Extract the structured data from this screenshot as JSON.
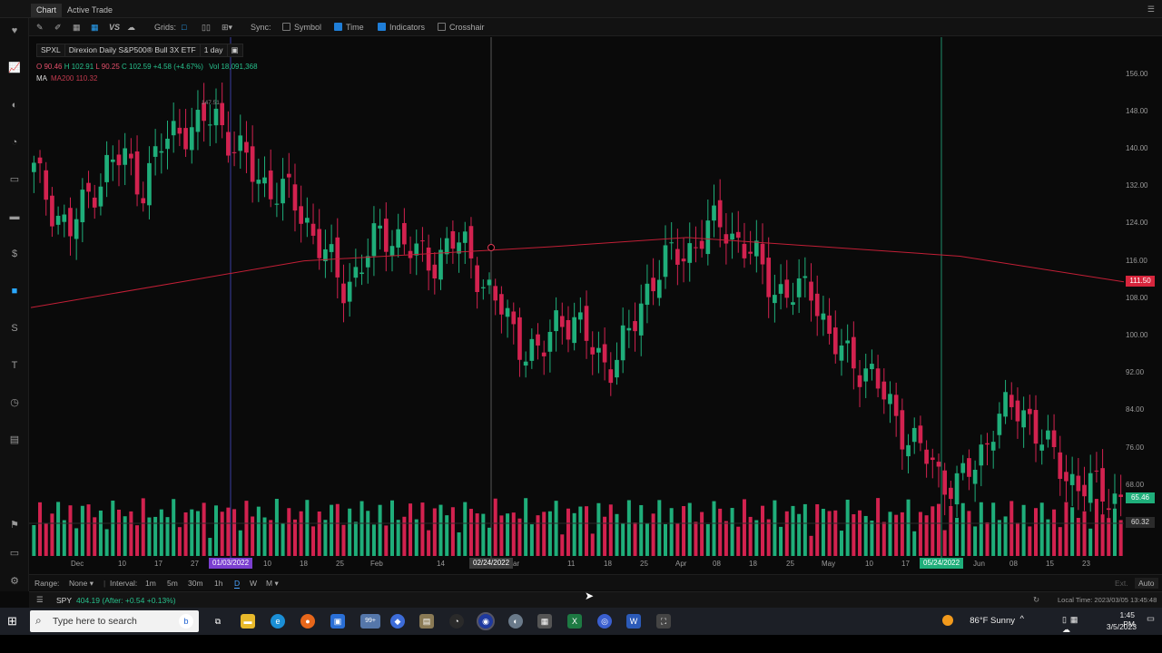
{
  "tabs": [
    "Chart",
    "Active Trade"
  ],
  "toolbar": {
    "grids_label": "Grids:",
    "sync_label": "Sync:",
    "vs_label": "VS",
    "sync_options": [
      {
        "label": "Symbol",
        "checked": false
      },
      {
        "label": "Time",
        "checked": true
      },
      {
        "label": "Indicators",
        "checked": true
      },
      {
        "label": "Crosshair",
        "checked": false
      }
    ]
  },
  "header": {
    "symbol": "SPXL",
    "description": "Direxion Daily S&P500® Bull 3X ETF",
    "interval": "1 day",
    "ohlc": {
      "o": "O 90.46",
      "h": "H 102.91",
      "l": "L 90.25",
      "c": "C 102.59",
      "chg": "+4.58 (+4.67%)",
      "vol": "Vol 18,091,368"
    },
    "ma_label": "MA",
    "ma_value": "MA200 110.32",
    "high_marker": "147.51"
  },
  "price_axis": {
    "labels": [
      "156.00",
      "148.00",
      "140.00",
      "132.00",
      "124.00",
      "116.00",
      "108.00",
      "100.00",
      "92.00",
      "84.00",
      "76.00",
      "68.00"
    ],
    "ma_tag": "111.50",
    "last_tag": "65.46",
    "cross_tag": "60.32",
    "colors": {
      "ma": "#d7263d",
      "last": "#1fae7a",
      "cross": "#2b2b2b"
    }
  },
  "date_axis": {
    "labels": [
      "Dec",
      "10",
      "17",
      "27",
      "10",
      "18",
      "25",
      "Feb",
      "14",
      "ar",
      "11",
      "18",
      "25",
      "Apr",
      "08",
      "18",
      "25",
      "May",
      "10",
      "17",
      "Jun",
      "08",
      "15",
      "23"
    ],
    "tags": [
      {
        "text": "01/03/2022",
        "color": "#7b3fd0"
      },
      {
        "text": "02/24/2022",
        "color": "#3a3a3a"
      },
      {
        "text": "05/24/2022",
        "color": "#1fae7a"
      }
    ]
  },
  "range_bar": {
    "range_label": "Range:",
    "range_value": "None",
    "interval_label": "Interval:",
    "intervals": [
      "1m",
      "5m",
      "30m",
      "1h",
      "D",
      "W",
      "M"
    ],
    "selected": "D",
    "ext_label": "Ext.",
    "auto_label": "Auto"
  },
  "status": {
    "ticker": "SPY",
    "quote": "404.19 (After: +0.54 +0.13%)",
    "local_time": "Local Time: 2023/03/05 13:45:48"
  },
  "taskbar": {
    "search_placeholder": "Type here to search",
    "weather": "86°F  Sunny",
    "time": "1:45 PM",
    "date": "3/5/2023",
    "badge": "99+"
  },
  "chart_data": {
    "type": "candlestick",
    "symbol": "SPXL",
    "interval": "1 day",
    "ylim": [
      60,
      160
    ],
    "y_ticks": [
      68,
      76,
      84,
      92,
      100,
      108,
      116,
      124,
      132,
      140,
      148,
      156
    ],
    "x_range": [
      "2021-11-29",
      "2022-06-24"
    ],
    "ma200_approx": [
      [
        0,
        106
      ],
      [
        30,
        112
      ],
      [
        50,
        116
      ],
      [
        95,
        119
      ],
      [
        120,
        121
      ],
      [
        170,
        117
      ],
      [
        200,
        111.5
      ]
    ],
    "closes_approx": [
      135,
      128,
      122,
      130,
      136,
      138,
      132,
      140,
      145,
      144,
      147.5,
      141,
      135,
      132,
      130,
      125,
      118,
      110,
      115,
      121,
      122,
      117,
      116,
      120,
      118,
      110,
      104,
      98,
      95,
      105,
      102,
      96,
      94,
      101,
      112,
      116,
      118,
      122,
      124,
      120,
      115,
      110,
      108,
      111,
      98,
      95,
      93,
      86,
      80,
      75,
      70,
      68,
      72,
      82,
      84,
      83,
      75,
      70,
      68,
      66,
      65.46
    ],
    "volume_note": "Volume histogram, green = up day, red = down day",
    "last_price": 65.46,
    "ma200_last": 111.5
  }
}
